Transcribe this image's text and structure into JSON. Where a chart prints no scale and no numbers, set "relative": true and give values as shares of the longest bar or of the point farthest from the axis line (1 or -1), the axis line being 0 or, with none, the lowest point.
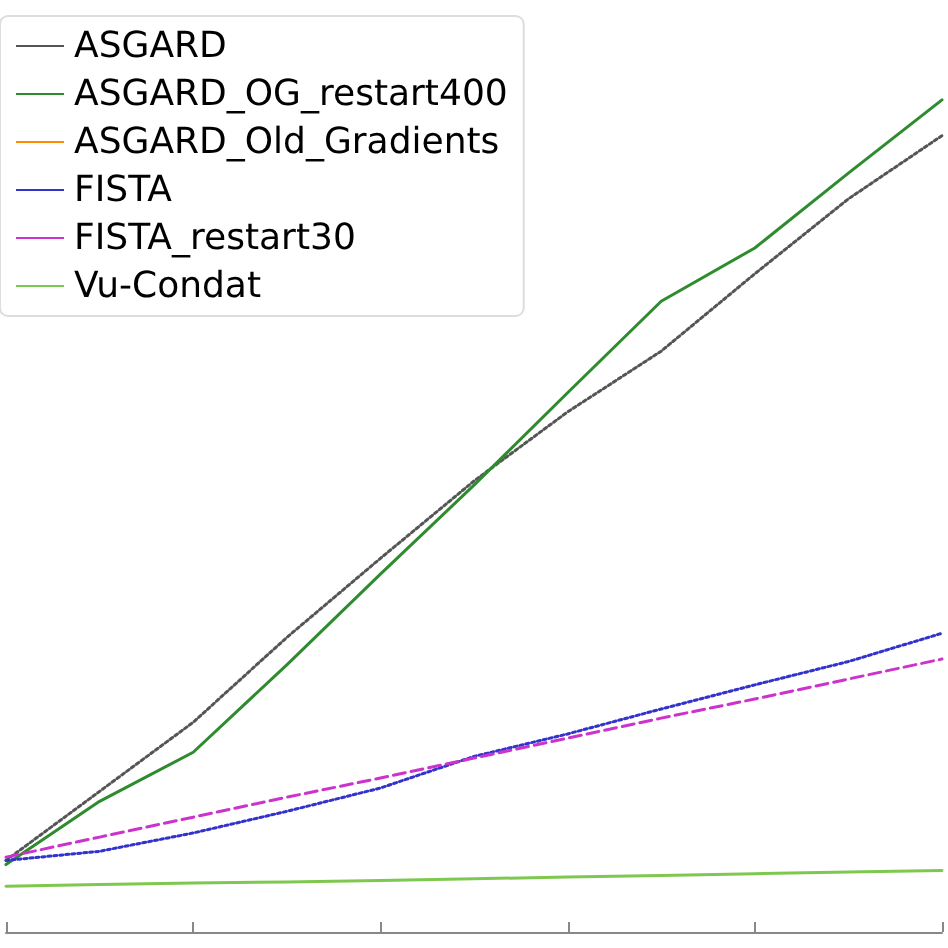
{
  "chart_data": {
    "type": "line",
    "relative": true,
    "legend": "top left",
    "grid": false,
    "marker": "none",
    "categories": [
      null,
      null,
      null,
      null,
      null,
      null,
      null,
      null,
      null,
      null,
      null
    ],
    "series": [
      {
        "name": "ASGARD",
        "color": "#555555",
        "line_style": "dotted",
        "values": [
          0.086,
          0.169,
          0.252,
          0.354,
          0.449,
          0.542,
          0.625,
          0.698,
          0.791,
          0.881,
          0.957
        ]
      },
      {
        "name": "ASGARD_OG_restart400",
        "color": "#2e8b2e",
        "line_style": "solid",
        "values": [
          0.081,
          0.157,
          0.216,
          0.321,
          0.43,
          0.537,
          0.648,
          0.758,
          0.822,
          0.912,
          1
        ]
      },
      {
        "name": "ASGARD_Old_Gradients",
        "color": "#ff8c00",
        "line_style": "solid",
        "values": [
          null,
          null,
          null,
          null,
          null,
          null,
          null,
          null,
          null,
          null,
          null
        ]
      },
      {
        "name": "FISTA",
        "color": "#3333cc",
        "line_style": "dotted",
        "values": [
          0.086,
          0.097,
          0.119,
          0.145,
          0.173,
          0.211,
          0.238,
          0.268,
          0.297,
          0.325,
          0.359
        ]
      },
      {
        "name": "FISTA_restart30",
        "color": "#cc33cc",
        "line_style": "dashed",
        "values": [
          0.09,
          0.114,
          0.138,
          0.162,
          0.185,
          0.209,
          0.233,
          0.257,
          0.28,
          0.304,
          0.328
        ]
      },
      {
        "name": "Vu-Condat",
        "color": "#7ec850",
        "line_style": "solid",
        "values": [
          0.055,
          0.057,
          0.059,
          0.06,
          0.062,
          0.064,
          0.066,
          0.068,
          0.07,
          0.072,
          0.074
        ]
      }
    ]
  }
}
